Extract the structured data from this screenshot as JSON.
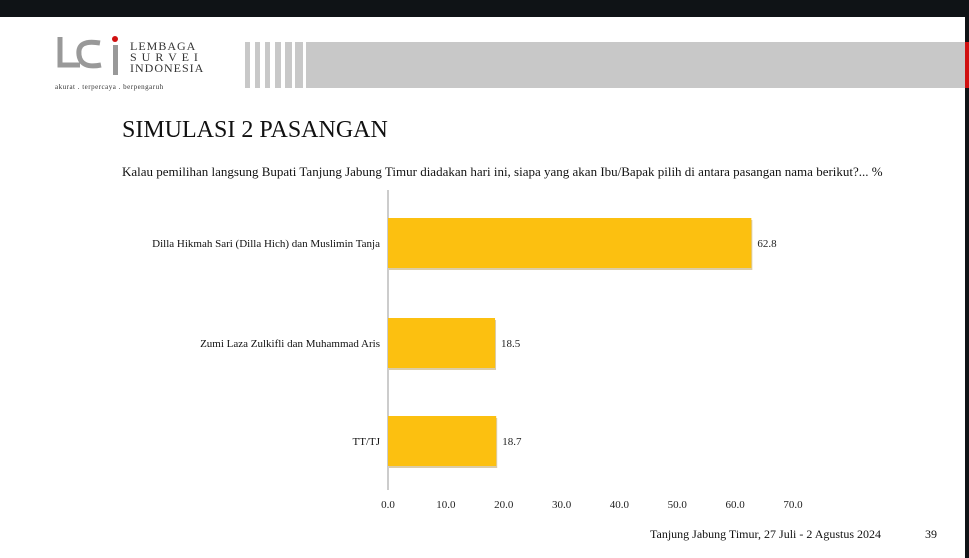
{
  "header": {
    "logo_lines": [
      "LEMBAGA",
      "S U R V E I",
      "INDONESIA"
    ],
    "tagline": "akurat . terpercaya . berpengaruh",
    "accent_color": "#d01010"
  },
  "slide": {
    "title": "SIMULASI 2 PASANGAN",
    "question": "Kalau pemilihan langsung Bupati Tanjung Jabung Timur diadakan hari ini, siapa yang akan Ibu/Bapak pilih di antara pasangan nama berikut?... %",
    "footer": "Tanjung Jabung Timur, 27 Juli - 2 Agustus 2024",
    "page_number": "39"
  },
  "chart_data": {
    "type": "bar",
    "orientation": "horizontal",
    "categories": [
      "Dilla Hikmah Sari (Dilla Hich) dan Muslimin Tanja",
      "Zumi Laza Zulkifli dan Muhammad Aris",
      "TT/TJ"
    ],
    "values": [
      62.8,
      18.5,
      18.7
    ],
    "value_labels": [
      "62.8",
      "18.5",
      "18.7"
    ],
    "xlim": [
      0,
      70
    ],
    "xticks": [
      "0.0",
      "10.0",
      "20.0",
      "30.0",
      "40.0",
      "50.0",
      "60.0",
      "70.0"
    ],
    "grid": false,
    "bar_color": "#fcc010"
  }
}
